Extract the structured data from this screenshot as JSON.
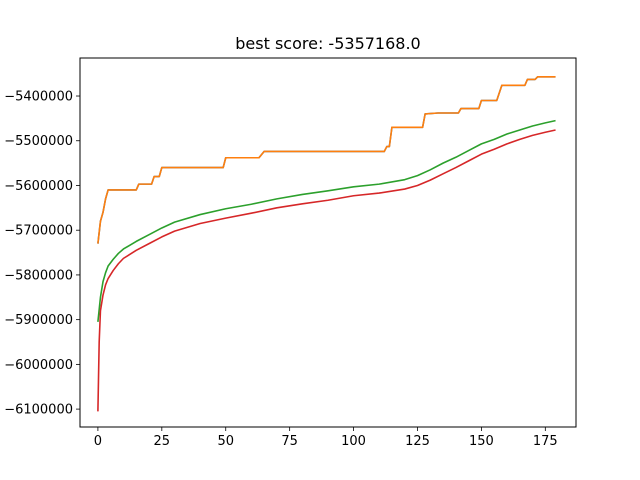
{
  "chart_data": {
    "type": "line",
    "title": "best score: -5357168.0",
    "xlabel": "",
    "ylabel": "",
    "xlim": [
      -7,
      187
    ],
    "ylim": [
      -6140000,
      -5315000
    ],
    "xticks": [
      0,
      25,
      50,
      75,
      100,
      125,
      150,
      175
    ],
    "yticks": [
      -6100000,
      -6000000,
      -5900000,
      -5800000,
      -5700000,
      -5600000,
      -5500000,
      -5400000
    ],
    "xtick_labels": [
      "0",
      "25",
      "50",
      "75",
      "100",
      "125",
      "150",
      "175"
    ],
    "ytick_labels": [
      "−6100000",
      "−6000000",
      "−5900000",
      "−5800000",
      "−5700000",
      "−5600000",
      "−5500000",
      "−5400000"
    ],
    "grid": false,
    "series": [
      {
        "color": "#1f77b4",
        "points": [
          [
            0,
            -5730000
          ],
          [
            1,
            -5680000
          ],
          [
            2,
            -5660000
          ],
          [
            3,
            -5630000
          ],
          [
            4,
            -5610000
          ],
          [
            15,
            -5610000
          ],
          [
            16,
            -5597000
          ],
          [
            21,
            -5597000
          ],
          [
            22,
            -5580000
          ],
          [
            24,
            -5580000
          ],
          [
            25,
            -5560000
          ],
          [
            49,
            -5560000
          ],
          [
            50,
            -5538000
          ],
          [
            63,
            -5538000
          ],
          [
            65,
            -5524000
          ],
          [
            112,
            -5524000
          ],
          [
            113,
            -5513000
          ],
          [
            114,
            -5513000
          ],
          [
            115,
            -5470000
          ],
          [
            127,
            -5470000
          ],
          [
            128,
            -5440000
          ],
          [
            133,
            -5438000
          ],
          [
            141,
            -5438000
          ],
          [
            142,
            -5428000
          ],
          [
            149,
            -5428000
          ],
          [
            150,
            -5410000
          ],
          [
            156,
            -5410000
          ],
          [
            158,
            -5376000
          ],
          [
            167,
            -5376000
          ],
          [
            168,
            -5363000
          ],
          [
            171,
            -5363000
          ],
          [
            172,
            -5357168
          ],
          [
            179,
            -5357168
          ]
        ]
      },
      {
        "color": "#ff7f0e",
        "points": [
          [
            0,
            -5730000
          ],
          [
            1,
            -5680000
          ],
          [
            2,
            -5660000
          ],
          [
            3,
            -5630000
          ],
          [
            4,
            -5610000
          ],
          [
            15,
            -5610000
          ],
          [
            16,
            -5597000
          ],
          [
            21,
            -5597000
          ],
          [
            22,
            -5580000
          ],
          [
            24,
            -5580000
          ],
          [
            25,
            -5560000
          ],
          [
            49,
            -5560000
          ],
          [
            50,
            -5538000
          ],
          [
            63,
            -5538000
          ],
          [
            65,
            -5524000
          ],
          [
            112,
            -5524000
          ],
          [
            113,
            -5513000
          ],
          [
            114,
            -5513000
          ],
          [
            115,
            -5470000
          ],
          [
            127,
            -5470000
          ],
          [
            128,
            -5440000
          ],
          [
            133,
            -5438000
          ],
          [
            141,
            -5438000
          ],
          [
            142,
            -5428000
          ],
          [
            149,
            -5428000
          ],
          [
            150,
            -5410000
          ],
          [
            156,
            -5410000
          ],
          [
            158,
            -5376000
          ],
          [
            167,
            -5376000
          ],
          [
            168,
            -5363000
          ],
          [
            171,
            -5363000
          ],
          [
            172,
            -5357168
          ],
          [
            179,
            -5357168
          ]
        ]
      },
      {
        "color": "#2ca02c",
        "points": [
          [
            0,
            -5905000
          ],
          [
            1,
            -5850000
          ],
          [
            2,
            -5815000
          ],
          [
            3,
            -5795000
          ],
          [
            4,
            -5780000
          ],
          [
            6,
            -5765000
          ],
          [
            8,
            -5752000
          ],
          [
            10,
            -5742000
          ],
          [
            15,
            -5725000
          ],
          [
            20,
            -5710000
          ],
          [
            25,
            -5695000
          ],
          [
            30,
            -5682000
          ],
          [
            40,
            -5665000
          ],
          [
            50,
            -5652000
          ],
          [
            60,
            -5642000
          ],
          [
            70,
            -5630000
          ],
          [
            80,
            -5620000
          ],
          [
            90,
            -5612000
          ],
          [
            100,
            -5603000
          ],
          [
            110,
            -5597000
          ],
          [
            120,
            -5587000
          ],
          [
            125,
            -5578000
          ],
          [
            130,
            -5565000
          ],
          [
            135,
            -5550000
          ],
          [
            140,
            -5537000
          ],
          [
            145,
            -5522000
          ],
          [
            150,
            -5507000
          ],
          [
            155,
            -5497000
          ],
          [
            160,
            -5485000
          ],
          [
            165,
            -5476000
          ],
          [
            170,
            -5467000
          ],
          [
            175,
            -5460000
          ],
          [
            179,
            -5455000
          ]
        ]
      },
      {
        "color": "#d62728",
        "points": [
          [
            0,
            -6105000
          ],
          [
            0.5,
            -5950000
          ],
          [
            1,
            -5880000
          ],
          [
            2,
            -5845000
          ],
          [
            3,
            -5822000
          ],
          [
            4,
            -5808000
          ],
          [
            6,
            -5790000
          ],
          [
            8,
            -5775000
          ],
          [
            10,
            -5763000
          ],
          [
            15,
            -5745000
          ],
          [
            20,
            -5730000
          ],
          [
            25,
            -5715000
          ],
          [
            30,
            -5702000
          ],
          [
            40,
            -5685000
          ],
          [
            50,
            -5673000
          ],
          [
            60,
            -5662000
          ],
          [
            70,
            -5650000
          ],
          [
            80,
            -5641000
          ],
          [
            90,
            -5633000
          ],
          [
            100,
            -5623000
          ],
          [
            110,
            -5617000
          ],
          [
            120,
            -5608000
          ],
          [
            125,
            -5600000
          ],
          [
            130,
            -5588000
          ],
          [
            135,
            -5574000
          ],
          [
            140,
            -5560000
          ],
          [
            145,
            -5545000
          ],
          [
            150,
            -5530000
          ],
          [
            155,
            -5519000
          ],
          [
            160,
            -5507000
          ],
          [
            165,
            -5497000
          ],
          [
            170,
            -5488000
          ],
          [
            175,
            -5481000
          ],
          [
            179,
            -5476000
          ]
        ]
      }
    ]
  }
}
